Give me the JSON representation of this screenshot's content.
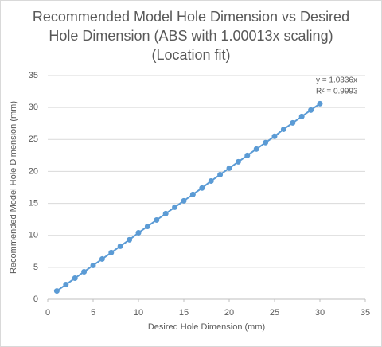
{
  "chart_data": {
    "type": "scatter-line",
    "title": [
      "Recommended Model Hole Dimension vs Desired",
      "Hole Dimension (ABS with 1.00013x scaling)",
      "(Location fit)"
    ],
    "x_label": "Desired Hole Dimension (mm)",
    "y_label": "Recommended  Model Hole Dimension (mm)",
    "annotations": [
      "y = 1.0336x",
      "R² = 0.9993"
    ],
    "x": [
      1,
      2,
      3,
      4,
      5,
      6,
      7,
      8,
      9,
      10,
      11,
      12,
      13,
      14,
      15,
      16,
      17,
      18,
      19,
      20,
      21,
      22,
      23,
      24,
      25,
      26,
      27,
      28,
      29,
      30
    ],
    "values": [
      1.3,
      2.3,
      3.3,
      4.3,
      5.3,
      6.3,
      7.3,
      8.3,
      9.3,
      10.4,
      11.4,
      12.4,
      13.4,
      14.4,
      15.4,
      16.4,
      17.4,
      18.5,
      19.5,
      20.5,
      21.5,
      22.5,
      23.5,
      24.5,
      25.5,
      26.6,
      27.6,
      28.6,
      29.6,
      30.6
    ],
    "color": "#5b9bd5",
    "xlim": [
      0,
      35
    ],
    "xticks": [
      0,
      5,
      10,
      15,
      20,
      25,
      30,
      35
    ],
    "ylim": [
      0,
      35
    ],
    "yticks": [
      0,
      5,
      10,
      15,
      20,
      25,
      30,
      35
    ],
    "grid": true
  }
}
